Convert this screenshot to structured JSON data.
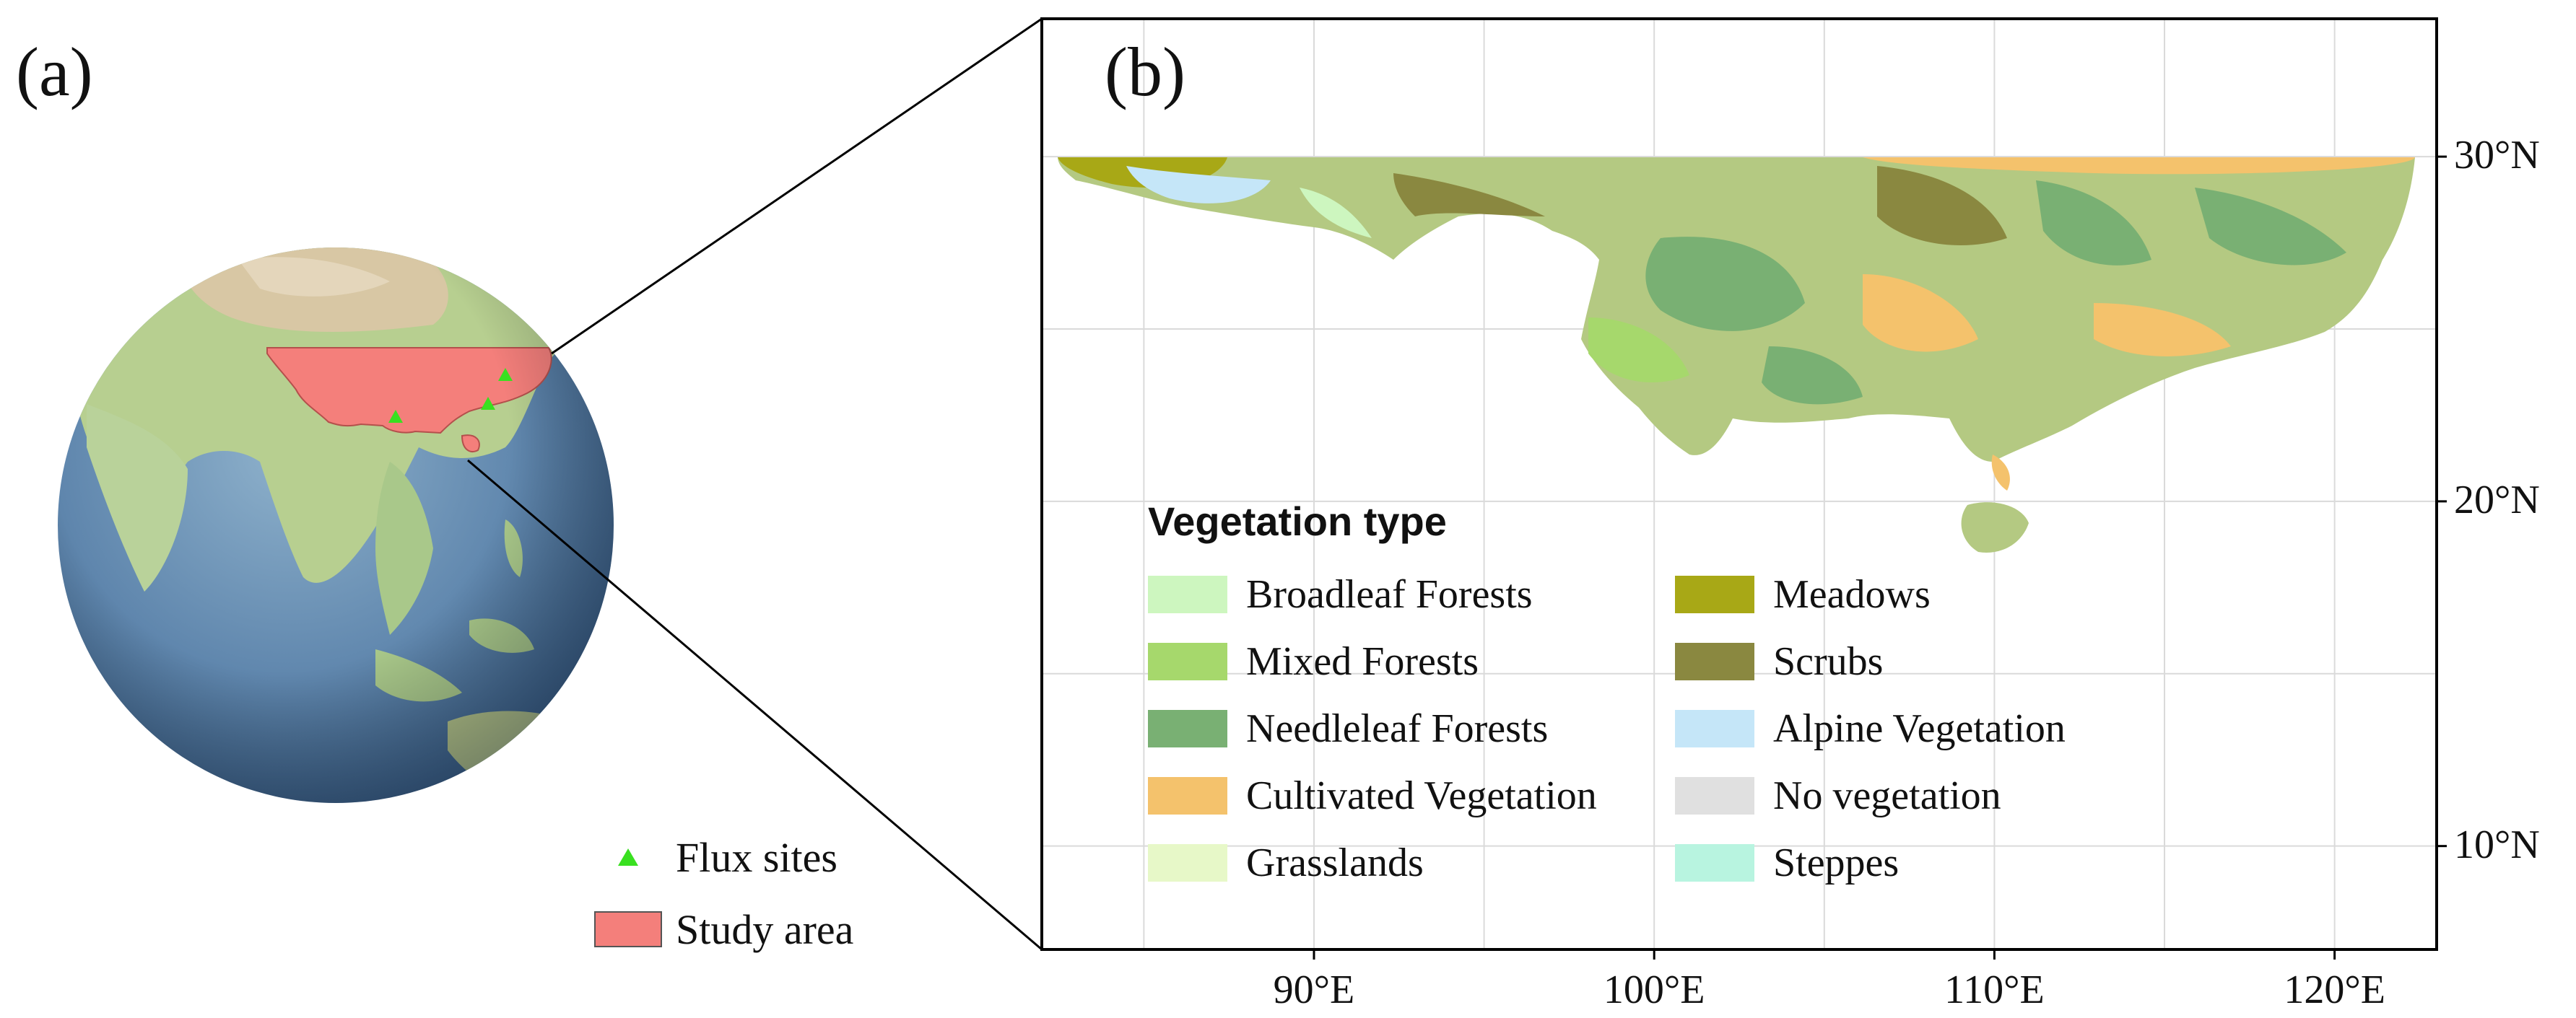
{
  "panels": {
    "a": "(a)",
    "b": "(b)"
  },
  "legend_a": {
    "flux_sites": "Flux sites",
    "study_area": "Study area",
    "flux_color": "#39e020",
    "study_color": "#f47f7b"
  },
  "vegetation_legend": {
    "title": "Vegetation type",
    "items": [
      {
        "label": "Broadleaf Forests",
        "color": "#cdf6bf"
      },
      {
        "label": "Mixed Forests",
        "color": "#a6d86c"
      },
      {
        "label": "Needleleaf Forests",
        "color": "#79b073"
      },
      {
        "label": "Cultivated Vegetation",
        "color": "#f4c26c"
      },
      {
        "label": "Grasslands",
        "color": "#e7f8c8"
      },
      {
        "label": "Meadows",
        "color": "#a8a816"
      },
      {
        "label": "Scrubs",
        "color": "#8a8840"
      },
      {
        "label": "Alpine Vegetation",
        "color": "#c5e6f8"
      },
      {
        "label": "No vegetation",
        "color": "#e0e0e0"
      },
      {
        "label": "Steppes",
        "color": "#b8f4e0"
      }
    ]
  },
  "map_axes": {
    "x_ticks": [
      {
        "value": 90,
        "label": "90°E"
      },
      {
        "value": 100,
        "label": "100°E"
      },
      {
        "value": 110,
        "label": "110°E"
      },
      {
        "value": 120,
        "label": "120°E"
      }
    ],
    "y_ticks": [
      {
        "value": 30,
        "label": "30°N"
      },
      {
        "value": 20,
        "label": "20°N"
      },
      {
        "value": 10,
        "label": "10°N"
      }
    ],
    "x_range": [
      82,
      123
    ],
    "y_range": [
      7,
      34
    ]
  }
}
